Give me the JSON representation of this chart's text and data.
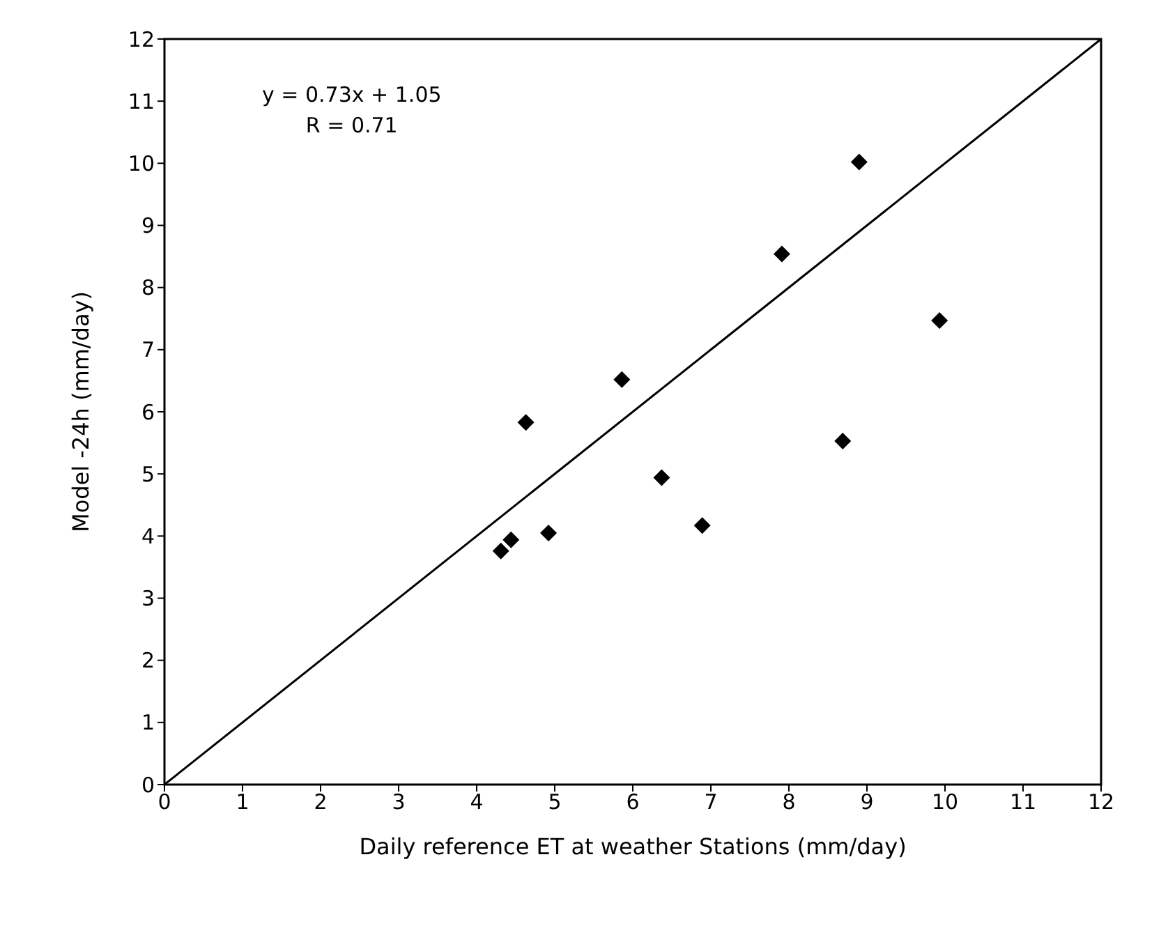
{
  "chart_data": {
    "type": "scatter",
    "xlabel": "Daily reference ET at weather Stations (mm/day)",
    "ylabel": "Model -24h (mm/day)",
    "annotations": [
      "y = 0.73x + 1.05",
      "R = 0.71"
    ],
    "series": [
      {
        "color": "#000000",
        "marker": "diamond",
        "x": [
          4.31,
          4.44,
          4.92,
          4.63,
          5.86,
          6.37,
          6.89,
          7.91,
          8.69,
          8.9,
          9.93
        ],
        "values": [
          3.76,
          3.94,
          4.05,
          5.83,
          6.52,
          4.94,
          4.17,
          8.54,
          5.53,
          10.02,
          7.47
        ]
      },
      {
        "type": "line",
        "color": "#000000",
        "marker": "none",
        "x": [
          0,
          12
        ],
        "values": [
          0,
          12
        ]
      }
    ],
    "xlim": [
      0,
      12
    ],
    "xticks": [
      0,
      1,
      2,
      3,
      4,
      5,
      6,
      7,
      8,
      9,
      10,
      11,
      12
    ],
    "ylim": [
      0,
      12
    ],
    "yticks": [
      0,
      1,
      2,
      3,
      4,
      5,
      6,
      7,
      8,
      9,
      10,
      11,
      12
    ],
    "grid": false
  }
}
